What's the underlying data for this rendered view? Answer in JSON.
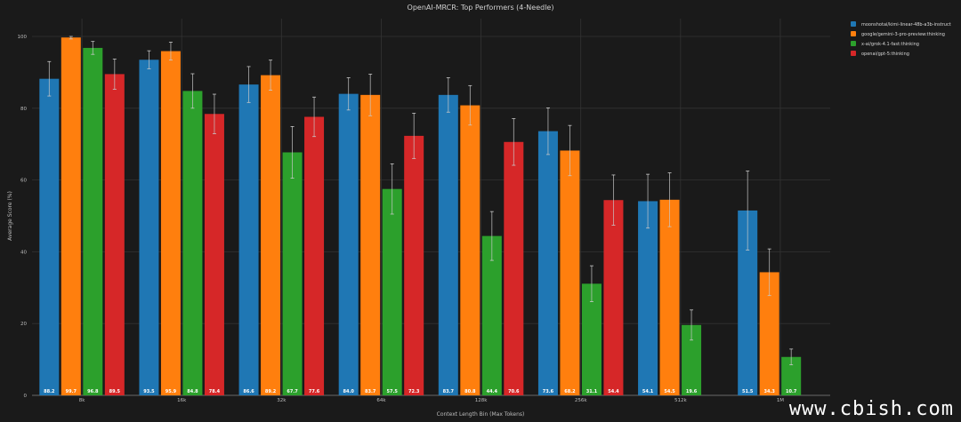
{
  "chart_data": {
    "type": "bar",
    "title": "OpenAI-MRCR: Top Performers (4-Needle)",
    "xlabel": "Context Length Bin (Max Tokens)",
    "ylabel": "Average Score (%)",
    "ylim": [
      0,
      100
    ],
    "yticks": [
      0,
      20,
      40,
      60,
      80,
      100
    ],
    "grid": true,
    "legend_position": "top-right",
    "categories": [
      "8k",
      "16k",
      "32k",
      "64k",
      "128k",
      "256k",
      "512k",
      "1M"
    ],
    "series": [
      {
        "name": "moonshotai/kimi-linear-48b-a3b-instruct",
        "color": "#1f77b4",
        "values": [
          88.2,
          93.5,
          86.6,
          84.0,
          83.7,
          73.6,
          54.1,
          51.5
        ],
        "labels": [
          "88.2",
          "93.5",
          "86.6",
          "84.0",
          "83.7",
          "73.6",
          "54.1",
          "51.5"
        ],
        "errors": [
          4.8,
          2.5,
          5.0,
          4.5,
          4.8,
          6.5,
          7.5,
          11.0
        ]
      },
      {
        "name": "google/gemini-3-pro-preview:thinking",
        "color": "#ff7f0e",
        "values": [
          99.7,
          95.9,
          89.2,
          83.7,
          80.8,
          68.2,
          54.5,
          34.3
        ],
        "labels": [
          "99.7",
          "95.9",
          "89.2",
          "83.7",
          "80.8",
          "68.2",
          "54.5",
          "34.3"
        ],
        "errors": [
          0.4,
          2.5,
          4.2,
          5.8,
          5.5,
          7.0,
          7.5,
          6.5
        ]
      },
      {
        "name": "x-ai/grok-4.1-fast:thinking",
        "color": "#2ca02c",
        "values": [
          96.8,
          84.8,
          67.7,
          57.5,
          44.4,
          31.1,
          19.6,
          10.7
        ],
        "labels": [
          "96.8",
          "84.8",
          "67.7",
          "57.5",
          "44.4",
          "31.1",
          "19.6",
          "10.7"
        ],
        "errors": [
          1.8,
          4.8,
          7.2,
          7.0,
          6.8,
          5.0,
          4.2,
          2.2
        ]
      },
      {
        "name": "openai/gpt-5:thinking",
        "color": "#d62728",
        "values": [
          89.5,
          78.4,
          77.6,
          72.3,
          70.6,
          54.4,
          null,
          null
        ],
        "labels": [
          "89.5",
          "78.4",
          "77.6",
          "72.3",
          "70.6",
          "54.4",
          "",
          ""
        ],
        "errors": [
          4.2,
          5.5,
          5.5,
          6.3,
          6.5,
          7.0,
          null,
          null
        ]
      }
    ]
  },
  "watermark": "www.cbish.com"
}
